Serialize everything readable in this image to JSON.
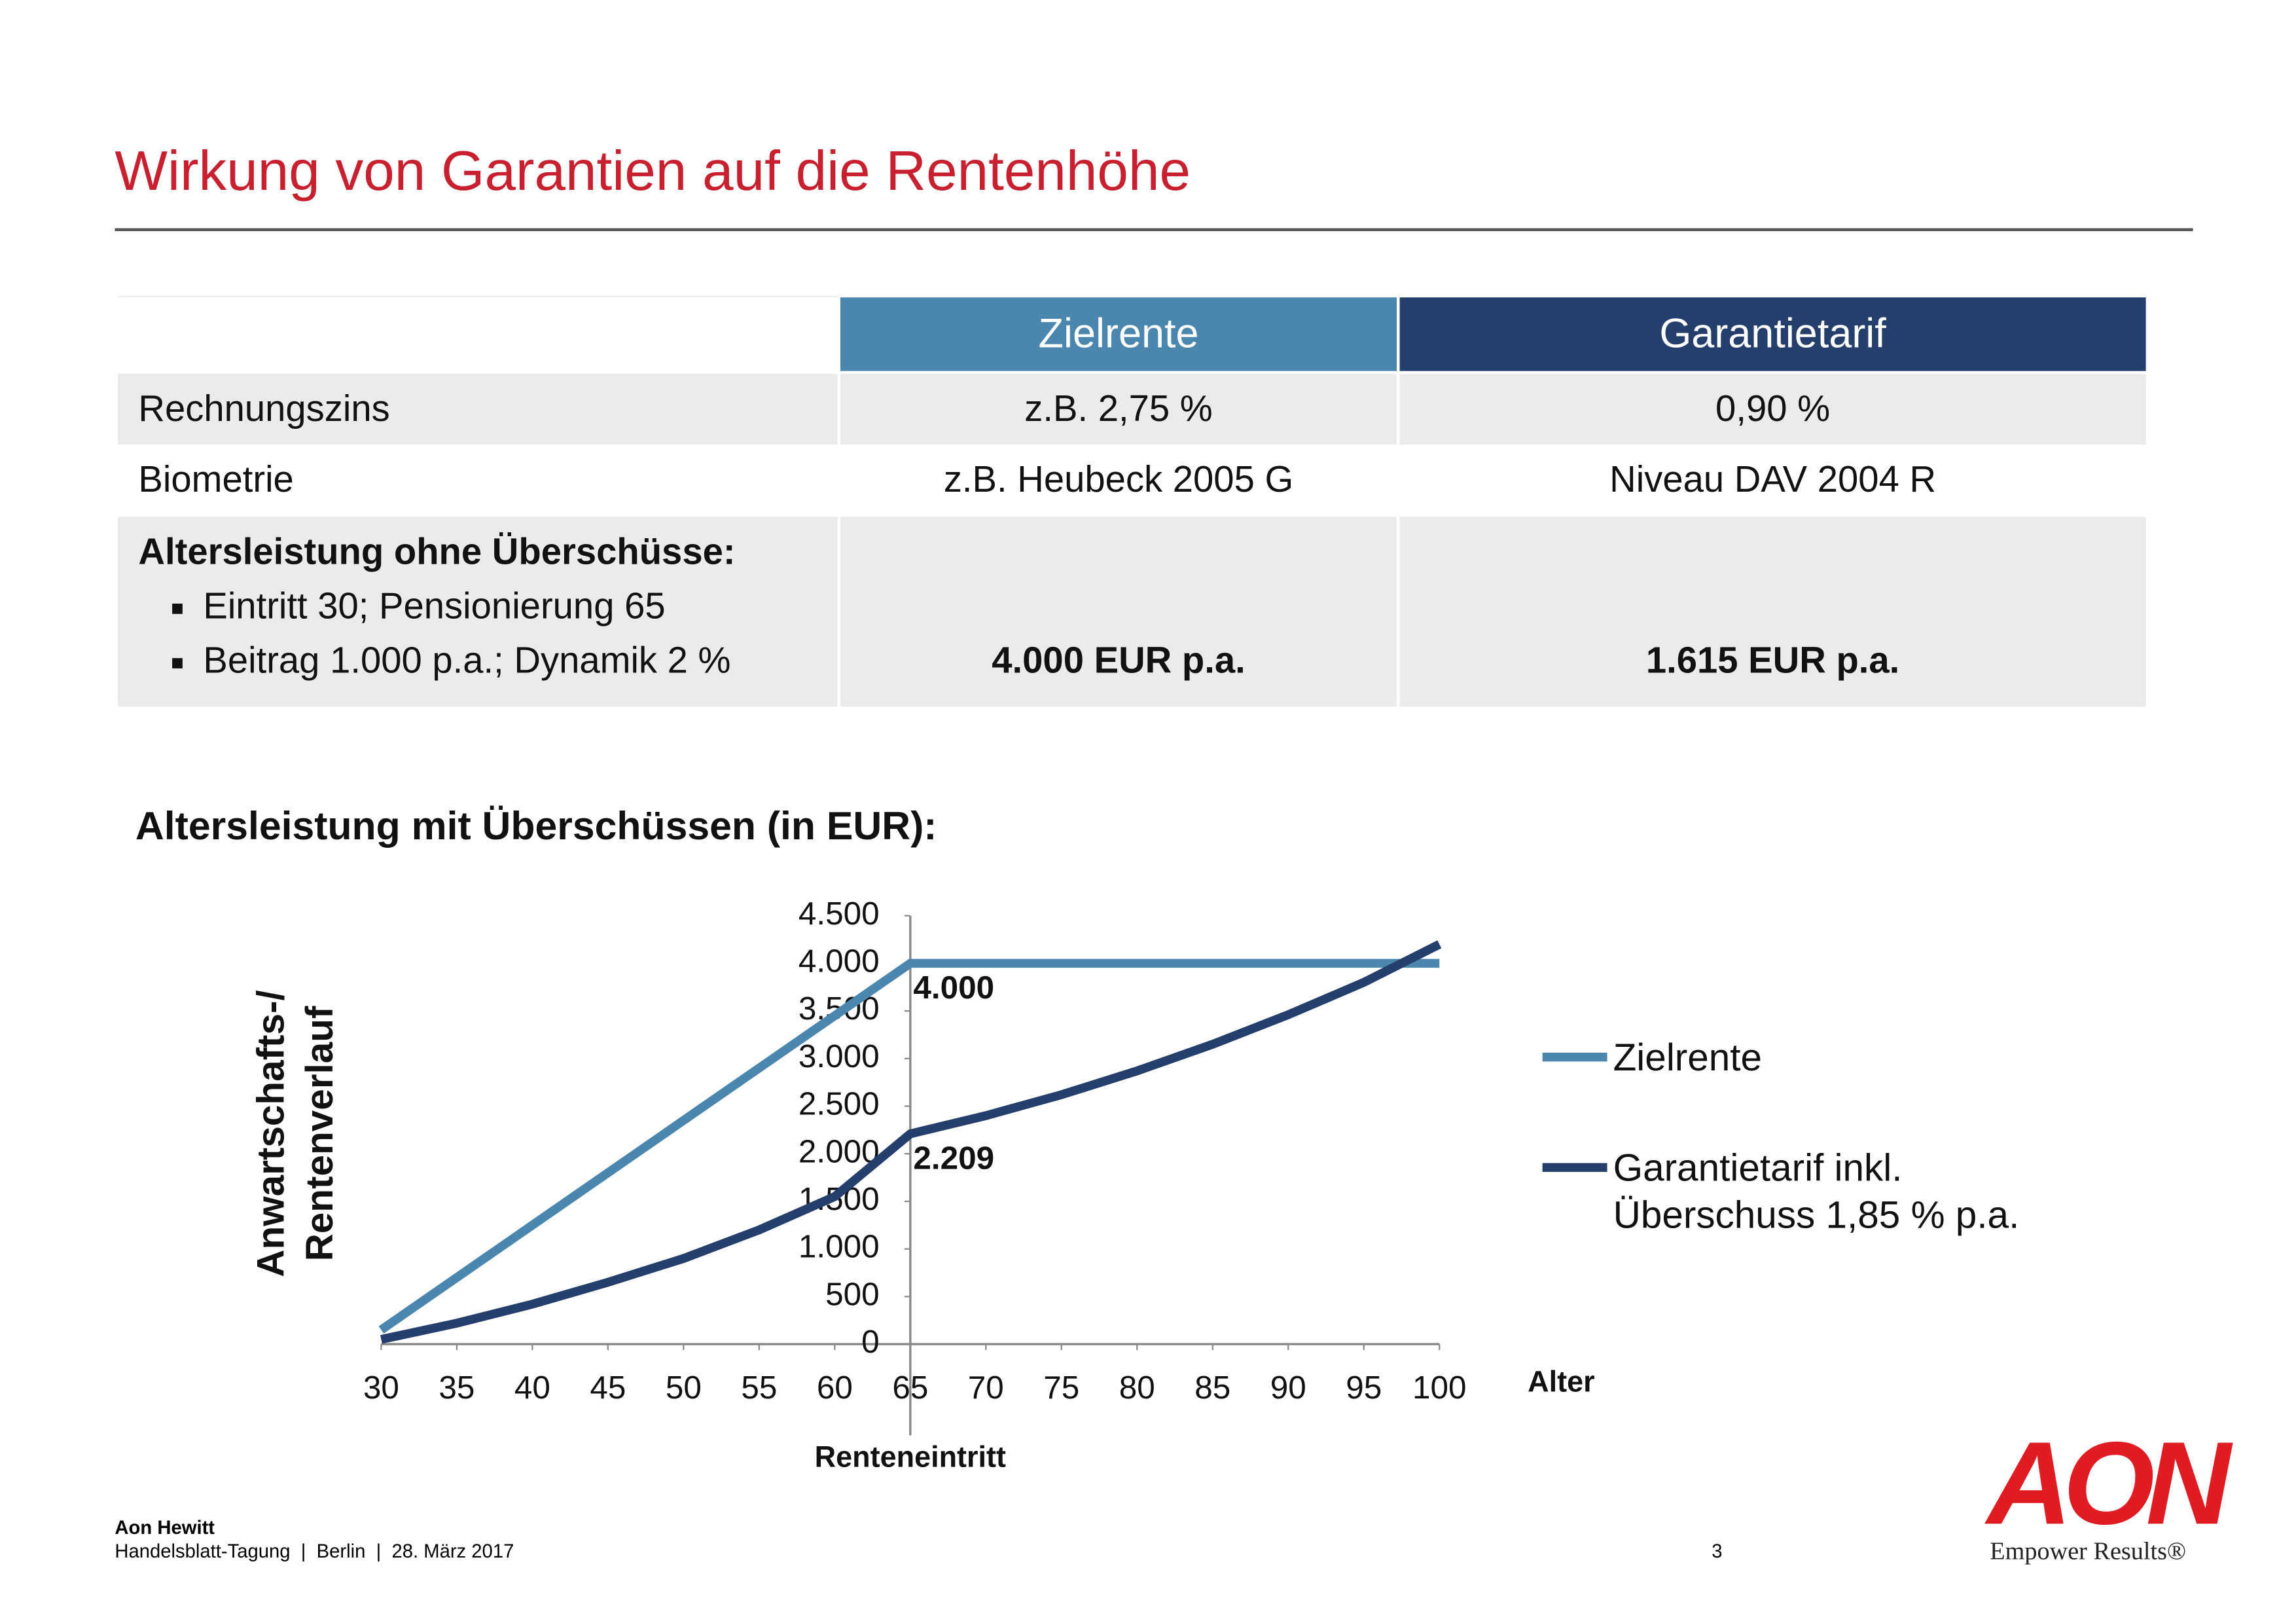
{
  "header": {
    "title": "Wirkung von Garantien auf die Rentenhöhe"
  },
  "table": {
    "header": [
      "Zielrente",
      "Garantietarif"
    ],
    "rows": [
      {
        "label": "Rechnungszins",
        "cells": [
          "z.B. 2,75 %",
          "0,90 %"
        ]
      },
      {
        "label": "Biometrie",
        "cells": [
          "z.B. Heubeck 2005 G",
          "Niveau DAV 2004 R"
        ]
      },
      {
        "label": "Altersleistung ohne Überschüsse:",
        "bullets": [
          "Eintritt 30; Pensionierung 65",
          "Beitrag 1.000 p.a.; Dynamik 2 %"
        ],
        "cells": [
          "4.000 EUR p.a.",
          "1.615 EUR p.a."
        ]
      }
    ]
  },
  "chart_data": {
    "type": "line",
    "title": "Altersleistung mit Überschüssen (in EUR):",
    "y_label": [
      "Anwartschafts-/",
      "Rentenverlauf"
    ],
    "x_label": "Alter",
    "marker_label": "Renteneintritt",
    "x": [
      30,
      35,
      40,
      45,
      50,
      55,
      60,
      65,
      70,
      75,
      80,
      85,
      90,
      95,
      100
    ],
    "series": [
      {
        "name": "Zielrente",
        "color": "#4a86ae",
        "values": [
          150,
          700,
          1250,
          1800,
          2350,
          2900,
          3450,
          4000,
          4000,
          4000,
          4000,
          4000,
          4000,
          4000,
          4000
        ]
      },
      {
        "name": "Garantietarif inkl. Überschuss 1,85 % p.a.",
        "color": "#253f6c",
        "values": [
          50,
          220,
          420,
          650,
          900,
          1200,
          1550,
          2209,
          2400,
          2620,
          2870,
          3150,
          3460,
          3800,
          4200
        ]
      }
    ],
    "annotations": [
      {
        "x": 65,
        "value": 4000,
        "label": "4.000"
      },
      {
        "x": 65,
        "value": 2209,
        "label": "2.209"
      }
    ],
    "xlim": [
      30,
      100
    ],
    "xticks": [
      30,
      35,
      40,
      45,
      50,
      55,
      60,
      65,
      70,
      75,
      80,
      85,
      90,
      95,
      100
    ],
    "ylim": [
      0,
      4500
    ],
    "yticks": [
      0,
      500,
      {
        "value": 1000,
        "label": "1.000"
      },
      {
        "value": 1500,
        "label": "1.500"
      },
      {
        "value": 2000,
        "label": "2.000"
      },
      {
        "value": 2500,
        "label": "2.500"
      },
      {
        "value": 3000,
        "label": "3.000"
      },
      {
        "value": 3500,
        "label": "3.500"
      },
      {
        "value": 4000,
        "label": "4.000"
      },
      {
        "value": 4500,
        "label": "4.500"
      }
    ],
    "y_axis_at": 65,
    "legend": "right"
  },
  "footer": {
    "company": "Aon Hewitt",
    "event": "Handelsblatt-Tagung  |  Berlin  |  28. März 2017",
    "page": "3",
    "logo": "AON",
    "tagline": "Empower Results®"
  }
}
